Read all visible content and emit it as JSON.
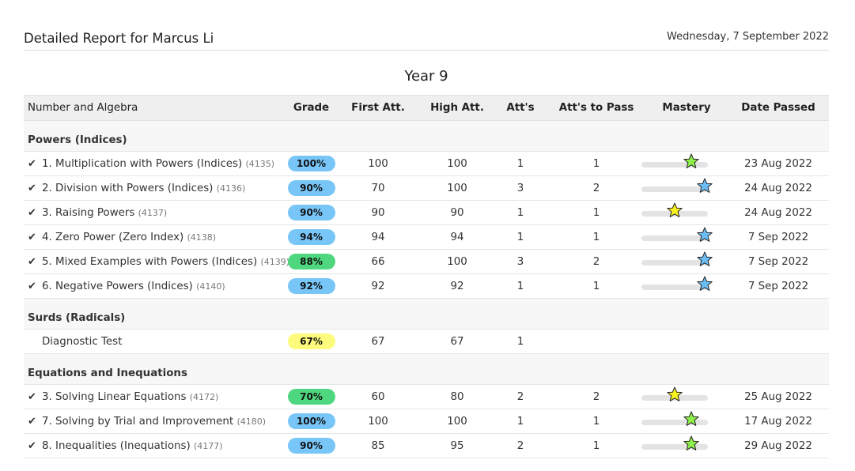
{
  "report": {
    "title": "Detailed Report for Marcus Li",
    "date": "Wednesday, 7 September 2022",
    "year": "Year 9"
  },
  "columns": {
    "topic": "Number and Algebra",
    "grade": "Grade",
    "first": "First Att.",
    "high": "High Att.",
    "atts": "Att's",
    "atts_to_pass": "Att's to Pass",
    "mastery": "Mastery",
    "date_passed": "Date Passed"
  },
  "colors": {
    "blue_badge": "#78c6f8",
    "green_badge": "#4fd77f",
    "yellow_badge": "#fdfb7c",
    "star_green": "#8ef04a",
    "star_blue": "#6bbdf4",
    "star_yellow": "#fbf320"
  },
  "sections": [
    {
      "name": "Powers (Indices)",
      "rows": [
        {
          "check": true,
          "name": "1. Multiplication with Powers (Indices)",
          "code": "(4135)",
          "grade": "100%",
          "badge": "blue",
          "first": "100",
          "high": "100",
          "atts": "1",
          "to_pass": "1",
          "mastery": 0.75,
          "star": "green",
          "date": "23 Aug 2022"
        },
        {
          "check": true,
          "name": "2. Division with Powers (Indices)",
          "code": "(4136)",
          "grade": "90%",
          "badge": "blue",
          "first": "70",
          "high": "100",
          "atts": "3",
          "to_pass": "2",
          "mastery": 0.95,
          "star": "blue",
          "date": "24 Aug 2022"
        },
        {
          "check": true,
          "name": "3. Raising Powers",
          "code": "(4137)",
          "grade": "90%",
          "badge": "blue",
          "first": "90",
          "high": "90",
          "atts": "1",
          "to_pass": "1",
          "mastery": 0.5,
          "star": "yellow",
          "date": "24 Aug 2022"
        },
        {
          "check": true,
          "name": "4. Zero Power (Zero Index)",
          "code": "(4138)",
          "grade": "94%",
          "badge": "blue",
          "first": "94",
          "high": "94",
          "atts": "1",
          "to_pass": "1",
          "mastery": 0.95,
          "star": "blue",
          "date": "7 Sep 2022"
        },
        {
          "check": true,
          "name": "5. Mixed Examples with Powers (Indices)",
          "code": "(4139)",
          "grade": "88%",
          "badge": "green",
          "first": "66",
          "high": "100",
          "atts": "3",
          "to_pass": "2",
          "mastery": 0.95,
          "star": "blue",
          "date": "7 Sep 2022"
        },
        {
          "check": true,
          "name": "6. Negative Powers (Indices)",
          "code": "(4140)",
          "grade": "92%",
          "badge": "blue",
          "first": "92",
          "high": "92",
          "atts": "1",
          "to_pass": "1",
          "mastery": 0.95,
          "star": "blue",
          "date": "7 Sep 2022"
        }
      ]
    },
    {
      "name": "Surds (Radicals)",
      "rows": [
        {
          "check": false,
          "name": "Diagnostic Test",
          "code": "",
          "grade": "67%",
          "badge": "yellow",
          "first": "67",
          "high": "67",
          "atts": "1",
          "to_pass": "",
          "mastery": null,
          "star": "",
          "date": ""
        }
      ]
    },
    {
      "name": "Equations and Inequations",
      "rows": [
        {
          "check": true,
          "name": "3. Solving Linear Equations",
          "code": "(4172)",
          "grade": "70%",
          "badge": "green",
          "first": "60",
          "high": "80",
          "atts": "2",
          "to_pass": "2",
          "mastery": 0.5,
          "star": "yellow",
          "date": "25 Aug 2022"
        },
        {
          "check": true,
          "name": "7. Solving by Trial and Improvement",
          "code": "(4180)",
          "grade": "100%",
          "badge": "blue",
          "first": "100",
          "high": "100",
          "atts": "1",
          "to_pass": "1",
          "mastery": 0.75,
          "star": "green",
          "date": "17 Aug 2022"
        },
        {
          "check": true,
          "name": "8. Inequalities (Inequations)",
          "code": "(4177)",
          "grade": "90%",
          "badge": "blue",
          "first": "85",
          "high": "95",
          "atts": "2",
          "to_pass": "1",
          "mastery": 0.75,
          "star": "green",
          "date": "29 Aug 2022"
        }
      ]
    }
  ]
}
